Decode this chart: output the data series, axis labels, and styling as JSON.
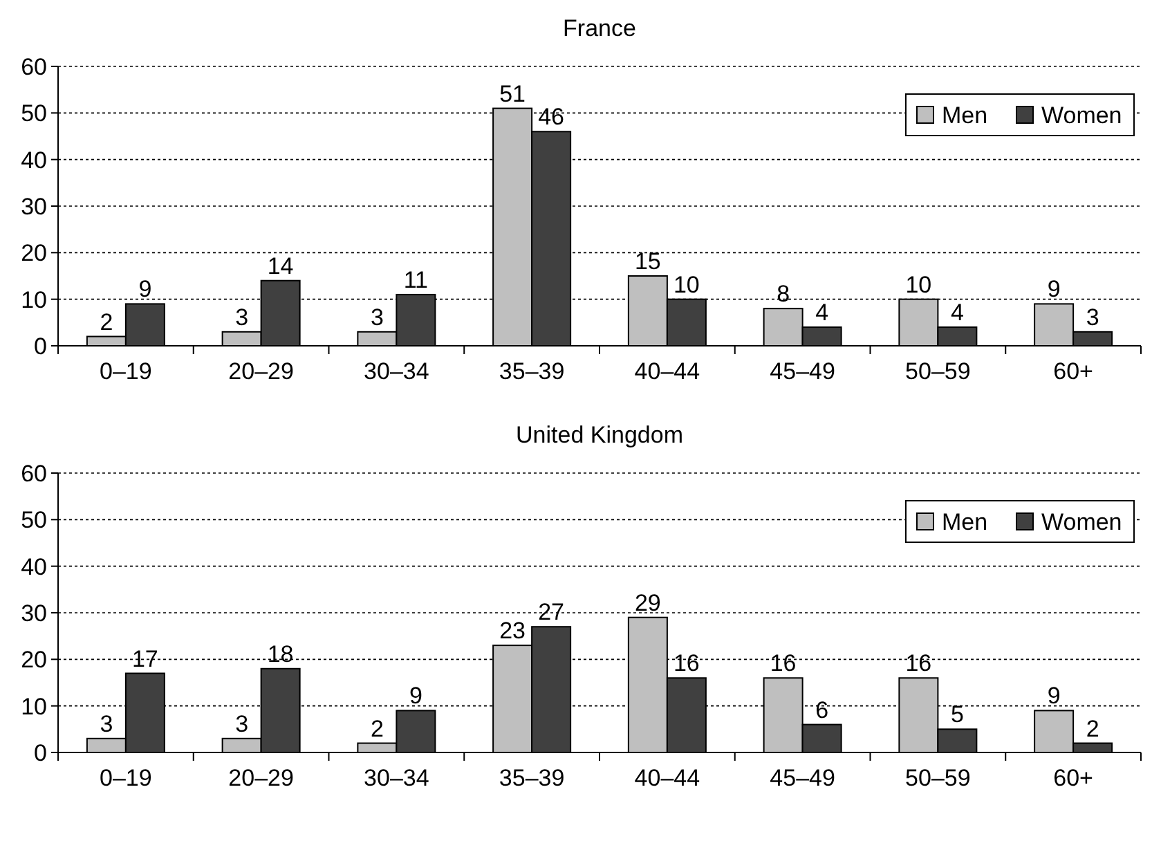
{
  "chart_data": [
    {
      "type": "bar",
      "title": "France",
      "categories": [
        "0–19",
        "20–29",
        "30–34",
        "35–39",
        "40–44",
        "45–49",
        "50–59",
        "60+"
      ],
      "series": [
        {
          "name": "Men",
          "color": "#bfbfbf",
          "values": [
            2,
            3,
            3,
            51,
            15,
            8,
            10,
            9
          ]
        },
        {
          "name": "Women",
          "color": "#404040",
          "values": [
            9,
            14,
            11,
            46,
            10,
            4,
            4,
            3
          ]
        }
      ],
      "ylim": [
        0,
        60
      ],
      "yticks": [
        0,
        10,
        20,
        30,
        40,
        50,
        60
      ],
      "grid": "y",
      "legend": "top right",
      "data_labels": true
    },
    {
      "type": "bar",
      "title": "United Kingdom",
      "categories": [
        "0–19",
        "20–29",
        "30–34",
        "35–39",
        "40–44",
        "45–49",
        "50–59",
        "60+"
      ],
      "series": [
        {
          "name": "Men",
          "color": "#bfbfbf",
          "values": [
            3,
            3,
            2,
            23,
            29,
            16,
            16,
            9
          ]
        },
        {
          "name": "Women",
          "color": "#404040",
          "values": [
            17,
            18,
            9,
            27,
            16,
            6,
            5,
            2
          ]
        }
      ],
      "ylim": [
        0,
        60
      ],
      "yticks": [
        0,
        10,
        20,
        30,
        40,
        50,
        60
      ],
      "grid": "y",
      "legend": "top right",
      "data_labels": true
    }
  ]
}
